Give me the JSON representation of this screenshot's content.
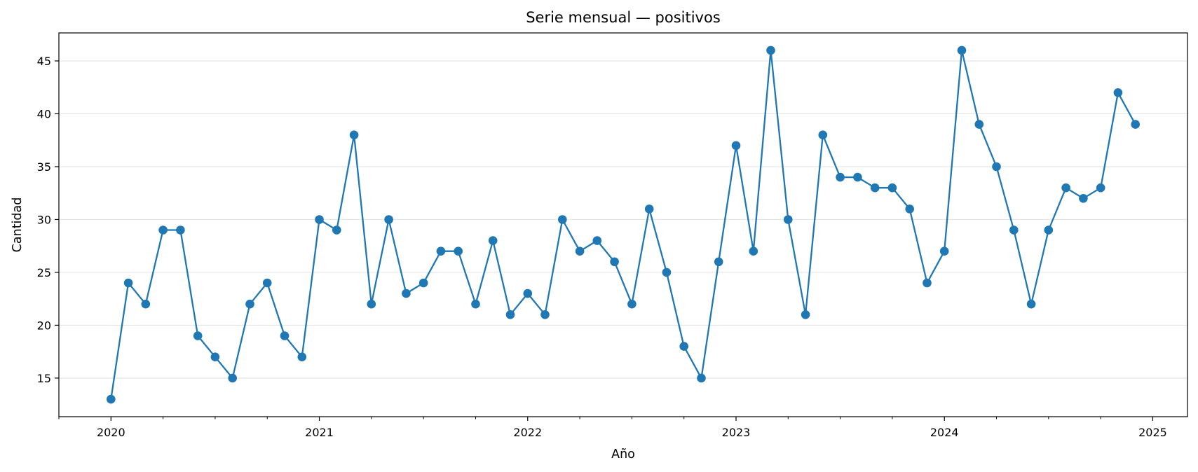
{
  "chart_data": {
    "type": "line",
    "title": "Serie mensual — positivos",
    "xlabel": "Año",
    "ylabel": "Cantidad",
    "x": [
      "2020-01",
      "2020-02",
      "2020-03",
      "2020-04",
      "2020-05",
      "2020-06",
      "2020-07",
      "2020-08",
      "2020-09",
      "2020-10",
      "2020-11",
      "2020-12",
      "2021-01",
      "2021-02",
      "2021-03",
      "2021-04",
      "2021-05",
      "2021-06",
      "2021-07",
      "2021-08",
      "2021-09",
      "2021-10",
      "2021-11",
      "2021-12",
      "2022-01",
      "2022-02",
      "2022-03",
      "2022-04",
      "2022-05",
      "2022-06",
      "2022-07",
      "2022-08",
      "2022-09",
      "2022-10",
      "2022-11",
      "2022-12",
      "2023-01",
      "2023-02",
      "2023-03",
      "2023-04",
      "2023-05",
      "2023-06",
      "2023-07",
      "2023-08",
      "2023-09",
      "2023-10",
      "2023-11",
      "2023-12",
      "2024-01",
      "2024-02",
      "2024-03",
      "2024-04",
      "2024-05",
      "2024-06",
      "2024-07",
      "2024-08",
      "2024-09",
      "2024-10",
      "2024-11",
      "2024-12"
    ],
    "series": [
      {
        "values": [
          13,
          24,
          22,
          29,
          29,
          19,
          17,
          15,
          22,
          24,
          19,
          17,
          30,
          29,
          38,
          22,
          30,
          23,
          24,
          27,
          27,
          22,
          28,
          21,
          23,
          21,
          30,
          27,
          28,
          26,
          22,
          31,
          25,
          18,
          15,
          26,
          37,
          27,
          46,
          30,
          21,
          38,
          34,
          34,
          33,
          33,
          31,
          24,
          27,
          46,
          39,
          35,
          29,
          22,
          29,
          33,
          32,
          33,
          42,
          39
        ],
        "color": "#1f77b4"
      }
    ],
    "xlim": [
      "2019-10",
      "2025-03"
    ],
    "ylim": [
      11.35,
      47.65
    ],
    "xticks": [
      "2020",
      "2021",
      "2022",
      "2023",
      "2024",
      "2025"
    ],
    "yticks": [
      15,
      20,
      25,
      30,
      35,
      40,
      45
    ],
    "grid": "horizontal",
    "legend": "none"
  }
}
